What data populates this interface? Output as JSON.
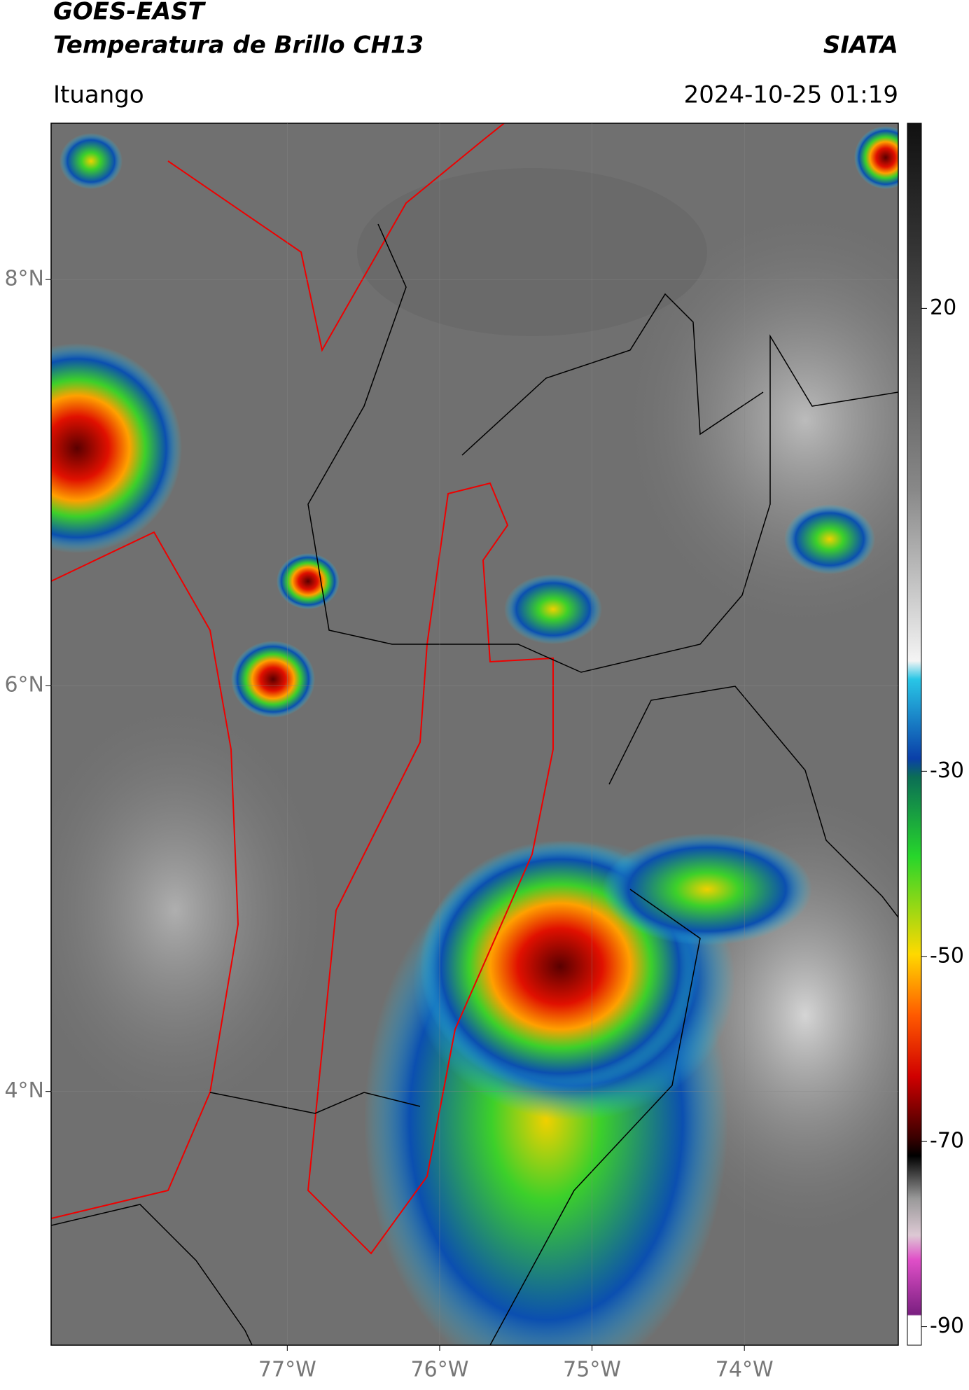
{
  "header": {
    "title": "GOES-EAST",
    "subtitle": "Temperatura de Brillo CH13",
    "agency": "SIATA",
    "location": "Ituango",
    "datetime": "2024-10-25 01:19"
  },
  "map": {
    "xlim": [
      -78.55,
      -72.99
    ],
    "ylim": [
      2.75,
      8.77
    ],
    "xticks": [
      {
        "value": -77,
        "label": "77°W"
      },
      {
        "value": -76,
        "label": "76°W"
      },
      {
        "value": -75,
        "label": "75°W"
      },
      {
        "value": -74,
        "label": "74°W"
      }
    ],
    "yticks": [
      {
        "value": 8,
        "label": "8°N"
      },
      {
        "value": 6,
        "label": "6°N"
      },
      {
        "value": 4,
        "label": "4°N"
      }
    ],
    "grid": true
  },
  "colorbar": {
    "range": [
      -92,
      40
    ],
    "ticks": [
      20,
      -30,
      -50,
      -70,
      -90
    ]
  }
}
